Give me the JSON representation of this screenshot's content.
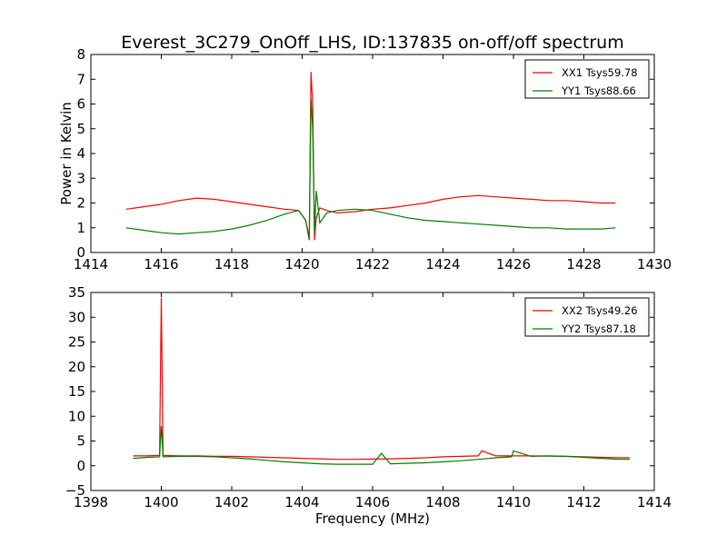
{
  "chart_data": {
    "type": "line",
    "title": "Everest_3C279_OnOff_LHS, ID:137835 on-off/off spectrum",
    "colors": {
      "XX": "#ff0000",
      "YY": "#007f00"
    },
    "panels": [
      {
        "ylabel": "Power in Kelvin",
        "xlabel": "",
        "xlim": [
          1414,
          1430
        ],
        "ylim": [
          0,
          8
        ],
        "xticks": [
          "1414",
          "1416",
          "1418",
          "1420",
          "1422",
          "1424",
          "1426",
          "1428",
          "1430"
        ],
        "yticks": [
          "0",
          "1",
          "2",
          "3",
          "4",
          "5",
          "6",
          "7",
          "8"
        ],
        "legend_placement": "top-right",
        "series": [
          {
            "name": "XX1 Tsys59.78",
            "color": "#ff0000",
            "x": [
              1415.0,
              1415.5,
              1416.0,
              1416.5,
              1417.0,
              1417.5,
              1418.0,
              1418.5,
              1419.0,
              1419.5,
              1419.9,
              1420.1,
              1420.2,
              1420.25,
              1420.3,
              1420.35,
              1420.4,
              1420.5,
              1420.7,
              1421.0,
              1421.5,
              1422.0,
              1422.5,
              1423.0,
              1423.5,
              1424.0,
              1424.5,
              1425.0,
              1425.5,
              1426.0,
              1426.5,
              1427.0,
              1427.5,
              1428.0,
              1428.5,
              1428.9
            ],
            "y": [
              1.75,
              1.85,
              1.95,
              2.1,
              2.2,
              2.15,
              2.05,
              1.95,
              1.85,
              1.75,
              1.7,
              1.3,
              0.5,
              7.3,
              6.0,
              0.5,
              1.4,
              1.8,
              1.7,
              1.6,
              1.65,
              1.75,
              1.8,
              1.9,
              2.0,
              2.15,
              2.25,
              2.3,
              2.25,
              2.2,
              2.15,
              2.1,
              2.1,
              2.05,
              2.0,
              2.0
            ]
          },
          {
            "name": "YY1 Tsys88.66",
            "color": "#007f00",
            "x": [
              1415.0,
              1415.5,
              1416.0,
              1416.5,
              1417.0,
              1417.5,
              1418.0,
              1418.5,
              1419.0,
              1419.5,
              1419.9,
              1420.1,
              1420.2,
              1420.25,
              1420.3,
              1420.35,
              1420.4,
              1420.5,
              1420.7,
              1421.0,
              1421.5,
              1422.0,
              1422.5,
              1423.0,
              1423.5,
              1424.0,
              1424.5,
              1425.0,
              1425.5,
              1426.0,
              1426.5,
              1427.0,
              1427.5,
              1428.0,
              1428.5,
              1428.9
            ],
            "y": [
              1.0,
              0.9,
              0.8,
              0.75,
              0.8,
              0.85,
              0.95,
              1.1,
              1.3,
              1.55,
              1.7,
              1.3,
              0.6,
              6.2,
              5.0,
              0.8,
              2.5,
              1.2,
              1.6,
              1.7,
              1.75,
              1.7,
              1.55,
              1.4,
              1.3,
              1.25,
              1.2,
              1.15,
              1.1,
              1.05,
              1.0,
              1.0,
              0.95,
              0.95,
              0.95,
              1.0
            ]
          }
        ]
      },
      {
        "ylabel": "",
        "xlabel": "Frequency (MHz)",
        "xlim": [
          1398,
          1414
        ],
        "ylim": [
          -5,
          35
        ],
        "xticks": [
          "1398",
          "1400",
          "1402",
          "1404",
          "1406",
          "1408",
          "1410",
          "1412",
          "1414"
        ],
        "yticks": [
          "−5",
          "0",
          "5",
          "10",
          "15",
          "20",
          "25",
          "30",
          "35"
        ],
        "legend_placement": "top-right",
        "series": [
          {
            "name": "XX2 Tsys49.26",
            "color": "#ff0000",
            "x": [
              1399.2,
              1399.6,
              1399.95,
              1400.0,
              1400.05,
              1400.5,
              1401.0,
              1401.5,
              1402.0,
              1402.5,
              1403.0,
              1403.5,
              1404.0,
              1404.5,
              1405.0,
              1405.5,
              1406.0,
              1406.5,
              1407.0,
              1407.5,
              1408.0,
              1408.5,
              1409.0,
              1409.1,
              1409.5,
              1410.0,
              1410.5,
              1411.0,
              1411.5,
              1412.0,
              1412.5,
              1413.0,
              1413.3
            ],
            "y": [
              2.0,
              2.0,
              2.1,
              34.0,
              2.1,
              2.0,
              2.0,
              1.9,
              1.9,
              1.8,
              1.7,
              1.6,
              1.5,
              1.4,
              1.3,
              1.3,
              1.35,
              1.4,
              1.5,
              1.6,
              1.8,
              1.9,
              2.0,
              3.0,
              2.0,
              2.0,
              2.0,
              1.95,
              1.9,
              1.8,
              1.7,
              1.6,
              1.6
            ]
          },
          {
            "name": "YY2 Tsys87.18",
            "color": "#007f00",
            "x": [
              1399.2,
              1399.6,
              1399.95,
              1400.0,
              1400.05,
              1400.5,
              1401.0,
              1401.5,
              1402.0,
              1402.5,
              1403.0,
              1403.5,
              1404.0,
              1404.5,
              1405.0,
              1405.5,
              1406.0,
              1406.25,
              1406.5,
              1407.0,
              1407.5,
              1408.0,
              1408.5,
              1409.0,
              1409.5,
              1409.95,
              1410.0,
              1410.5,
              1411.0,
              1411.5,
              1412.0,
              1412.5,
              1413.0,
              1413.3
            ],
            "y": [
              1.5,
              1.7,
              1.8,
              8.0,
              1.8,
              1.9,
              1.9,
              1.8,
              1.6,
              1.4,
              1.1,
              0.8,
              0.6,
              0.4,
              0.3,
              0.3,
              0.3,
              2.5,
              0.4,
              0.5,
              0.6,
              0.8,
              1.0,
              1.3,
              1.6,
              1.8,
              3.0,
              1.9,
              2.0,
              1.9,
              1.7,
              1.5,
              1.3,
              1.3
            ]
          }
        ]
      }
    ]
  }
}
